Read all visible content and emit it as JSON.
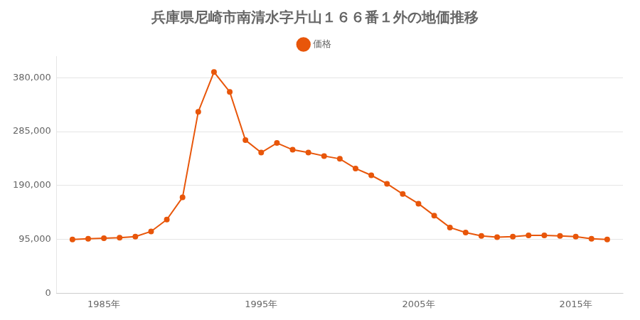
{
  "chart_data": {
    "type": "line",
    "title": "兵庫県尼崎市南清水字片山１６６番１外の地価推移",
    "x": [
      1983,
      1984,
      1985,
      1986,
      1987,
      1988,
      1989,
      1990,
      1991,
      1992,
      1993,
      1994,
      1995,
      1996,
      1997,
      1998,
      1999,
      2000,
      2001,
      2002,
      2003,
      2004,
      2005,
      2006,
      2007,
      2008,
      2009,
      2010,
      2011,
      2012,
      2013,
      2014,
      2015,
      2016,
      2017
    ],
    "series": [
      {
        "name": "価格",
        "color": "#e8560a",
        "marker": "circle",
        "values": [
          95000,
          96000,
          97000,
          98000,
          100000,
          109000,
          130000,
          169000,
          320000,
          390000,
          355000,
          270000,
          248000,
          265000,
          253000,
          248000,
          242000,
          237000,
          220000,
          208000,
          193000,
          175000,
          158000,
          137000,
          116000,
          107000,
          101000,
          99000,
          100000,
          102000,
          102000,
          101000,
          100000,
          96000,
          95000
        ]
      }
    ],
    "xlim": [
      1982,
      2018
    ],
    "xticks": [
      {
        "value": 1985,
        "label": "1985年"
      },
      {
        "value": 1995,
        "label": "1995年"
      },
      {
        "value": 2005,
        "label": "2005年"
      },
      {
        "value": 2015,
        "label": "2015年"
      }
    ],
    "ylim": [
      0,
      418000
    ],
    "yticks": [
      0,
      {
        "value": 95000,
        "label": "95,000"
      },
      {
        "value": 190000,
        "label": "190,000"
      },
      {
        "value": 285000,
        "label": "285,000"
      },
      {
        "value": 380000,
        "label": "380,000"
      }
    ],
    "grid": "y",
    "legend": "top"
  }
}
